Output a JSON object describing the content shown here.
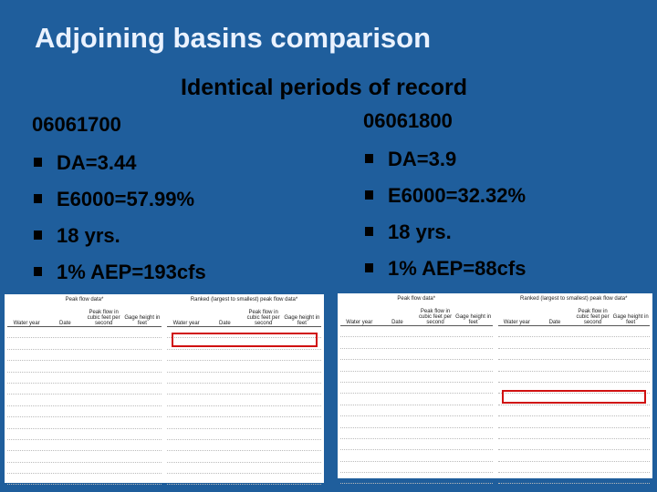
{
  "title": "Adjoining basins comparison",
  "subtitle": "Identical periods of record",
  "columns": [
    {
      "station": "06061700",
      "bullets": [
        "DA=3.44",
        "E6000=57.99%",
        "18 yrs.",
        "1% AEP=193cfs"
      ]
    },
    {
      "station": "06061800",
      "bullets": [
        "DA=3.9",
        "E6000=32.32%",
        "18 yrs.",
        "1% AEP=88cfs"
      ]
    }
  ],
  "tables": [
    {
      "captions": [
        "Peak flow data*",
        "Ranked (largest to smallest) peak flow data*"
      ],
      "headers": [
        "Water year",
        "Date",
        "Peak flow in cubic feet per second",
        "Gage height in feet"
      ]
    },
    {
      "captions": [
        "Peak flow data*",
        "Ranked (largest to smallest) peak flow data*"
      ],
      "headers": [
        "Water year",
        "Date",
        "Peak flow in cubic feet per second",
        "Gage height in feet"
      ]
    }
  ]
}
